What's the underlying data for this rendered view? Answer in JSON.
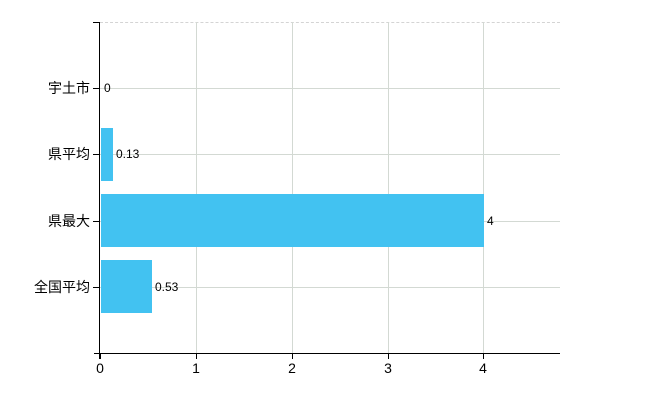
{
  "chart_data": {
    "type": "bar",
    "orientation": "horizontal",
    "title": "",
    "categories": [
      "宇土市",
      "県平均",
      "県最大",
      "全国平均"
    ],
    "values": [
      0,
      0.13,
      4,
      0.53
    ],
    "value_labels": [
      "0",
      "0.13",
      "4",
      "0.53"
    ],
    "x_tick_labels": [
      "0",
      "1",
      "2",
      "3",
      "4"
    ],
    "x_tick_values": [
      0,
      1,
      2,
      3,
      4
    ],
    "xlim": [
      0,
      4.8
    ],
    "grid": true,
    "legend": false,
    "colors": {
      "bar": "#42c2f1",
      "gridline": "#d3d9d3",
      "top_border": "#d4d4d4",
      "axis": "#000000",
      "text": "#000000",
      "background": "#ffffff"
    }
  }
}
